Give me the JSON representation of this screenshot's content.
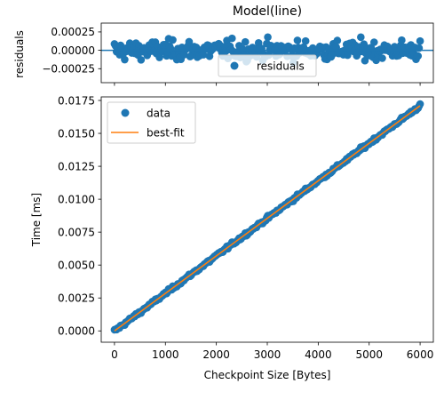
{
  "chart_data": [
    {
      "type": "scatter",
      "title": "Model(line)",
      "ylabel": "residuals",
      "xlim": [
        -260,
        6260
      ],
      "ylim": [
        -0.00044,
        0.00037
      ],
      "yticks": [
        -0.00025,
        0.0,
        0.00025
      ],
      "ytick_labels": [
        "−0.00025",
        "0.00000",
        "0.00025"
      ],
      "zero_line": 0.0,
      "grid": false,
      "legend": {
        "position": "lower-center",
        "entries": [
          "residuals"
        ]
      },
      "series": [
        {
          "name": "residuals",
          "color": "#1f77b4",
          "n_points": 300,
          "approx_range": [
            -0.0004,
            0.0003
          ]
        }
      ]
    },
    {
      "type": "scatter",
      "xlabel": "Checkpoint Size [Bytes]",
      "ylabel": "Time [ms]",
      "xlim": [
        -260,
        6260
      ],
      "ylim": [
        -0.00086,
        0.01777
      ],
      "xticks": [
        0,
        1000,
        2000,
        3000,
        4000,
        5000,
        6000
      ],
      "xtick_labels": [
        "0",
        "1000",
        "2000",
        "3000",
        "4000",
        "5000",
        "6000"
      ],
      "yticks": [
        0.0,
        0.0025,
        0.005,
        0.0075,
        0.01,
        0.0125,
        0.015,
        0.0175
      ],
      "ytick_labels": [
        "0.0000",
        "0.0025",
        "0.0050",
        "0.0075",
        "0.0100",
        "0.0125",
        "0.0150",
        "0.0175"
      ],
      "grid": false,
      "legend": {
        "position": "top-left",
        "entries": [
          "data",
          "best-fit"
        ]
      },
      "series": [
        {
          "name": "data",
          "kind": "scatter",
          "color": "#1f77b4",
          "x_range": [
            0,
            6000
          ],
          "n_points": 300
        },
        {
          "name": "best-fit",
          "kind": "line",
          "color": "#ff7f0e",
          "x": [
            0,
            6000
          ],
          "y": [
            0.0,
            0.0171
          ]
        }
      ]
    }
  ]
}
